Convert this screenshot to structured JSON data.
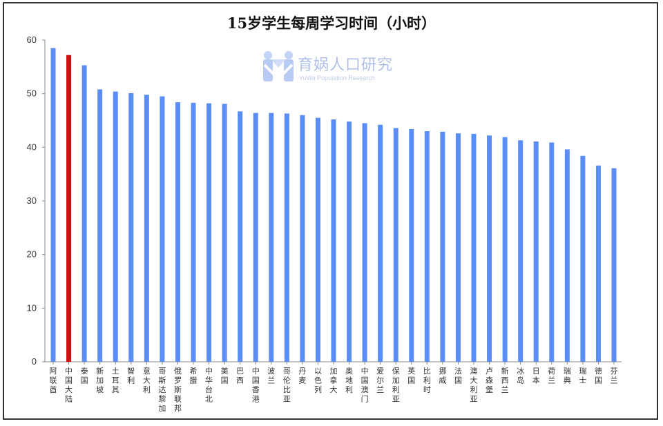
{
  "chart_data": {
    "type": "bar",
    "title": "15岁学生每周学习时间（小时）",
    "xlabel": "",
    "ylabel": "",
    "ylim": [
      0,
      60
    ],
    "yticks": [
      0,
      10,
      20,
      30,
      40,
      50,
      60
    ],
    "grid": false,
    "legend": "none",
    "categories": [
      "阿联酋",
      "中国大陆",
      "泰国",
      "新加坡",
      "土耳其",
      "智利",
      "意大利",
      "哥斯达黎加",
      "俄罗斯联邦",
      "希腊",
      "中华台北",
      "美国",
      "巴西",
      "中国香港",
      "波兰",
      "哥伦比亚",
      "丹麦",
      "以色列",
      "加拿大",
      "奥地利",
      "中国澳门",
      "爱尔兰",
      "保加利亚",
      "英国",
      "比利时",
      "挪威",
      "法国",
      "澳大利亚",
      "卢森堡",
      "新西兰",
      "冰岛",
      "日本",
      "荷兰",
      "瑞典",
      "瑞士",
      "德国",
      "芬兰"
    ],
    "values": [
      58.5,
      57.2,
      55.3,
      50.8,
      50.4,
      50.1,
      49.8,
      49.5,
      48.4,
      48.3,
      48.2,
      48.1,
      46.7,
      46.4,
      46.4,
      46.3,
      46.0,
      45.5,
      45.2,
      44.8,
      44.5,
      44.2,
      43.6,
      43.4,
      43.0,
      42.9,
      42.6,
      42.5,
      42.2,
      41.9,
      41.3,
      41.1,
      40.9,
      39.6,
      38.4,
      36.6,
      36.1
    ],
    "highlight_index": 1,
    "colors": {
      "bar": "#5a8ef6",
      "highlight": "#cc1111",
      "axis": "#888888",
      "text": "#333333"
    }
  },
  "watermark": {
    "name": "育娲人口研究",
    "subtitle": "YuWa Population Research"
  }
}
